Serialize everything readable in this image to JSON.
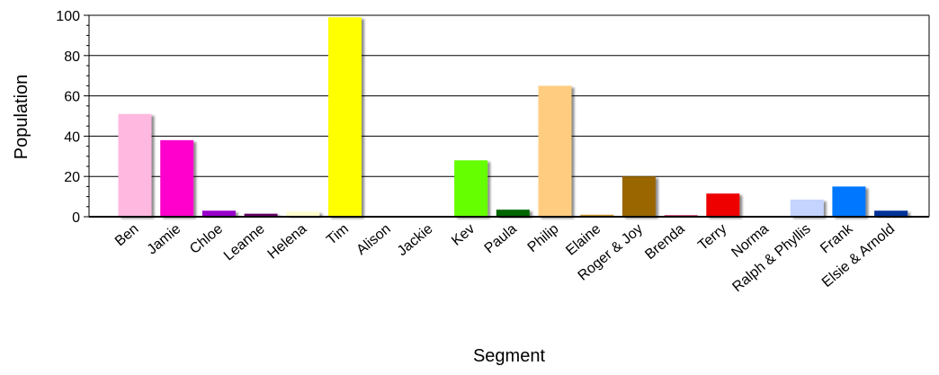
{
  "chart_data": {
    "type": "bar",
    "xlabel": "Segment",
    "ylabel": "Population",
    "ylim": [
      0,
      100
    ],
    "yticks": [
      0,
      20,
      40,
      60,
      80,
      100
    ],
    "grid": true,
    "legend": "none",
    "categories": [
      "Ben",
      "Jamie",
      "Chloe",
      "Leanne",
      "Helena",
      "Tim",
      "Alison",
      "Jackie",
      "Kev",
      "Paula",
      "Philip",
      "Elaine",
      "Roger & Joy",
      "Brenda",
      "Terry",
      "Norma",
      "Ralph & Phyllis",
      "Frank",
      "Elsie & Arnold"
    ],
    "values": [
      51,
      38,
      3,
      1.5,
      2.5,
      99,
      0,
      0,
      28,
      3.5,
      65,
      1,
      20,
      0.8,
      11.5,
      0,
      8.5,
      15,
      3
    ],
    "colors": [
      "#FFB8E0",
      "#FF00CC",
      "#9900CC",
      "#660066",
      "#FFFFCC",
      "#FFFF00",
      "#FFFFFF",
      "#FFFFFF",
      "#66FF00",
      "#006600",
      "#FFCC80",
      "#CC9933",
      "#996600",
      "#CC3366",
      "#EE0000",
      "#FFFFFF",
      "#C4D4FF",
      "#0077FF",
      "#003399"
    ]
  }
}
